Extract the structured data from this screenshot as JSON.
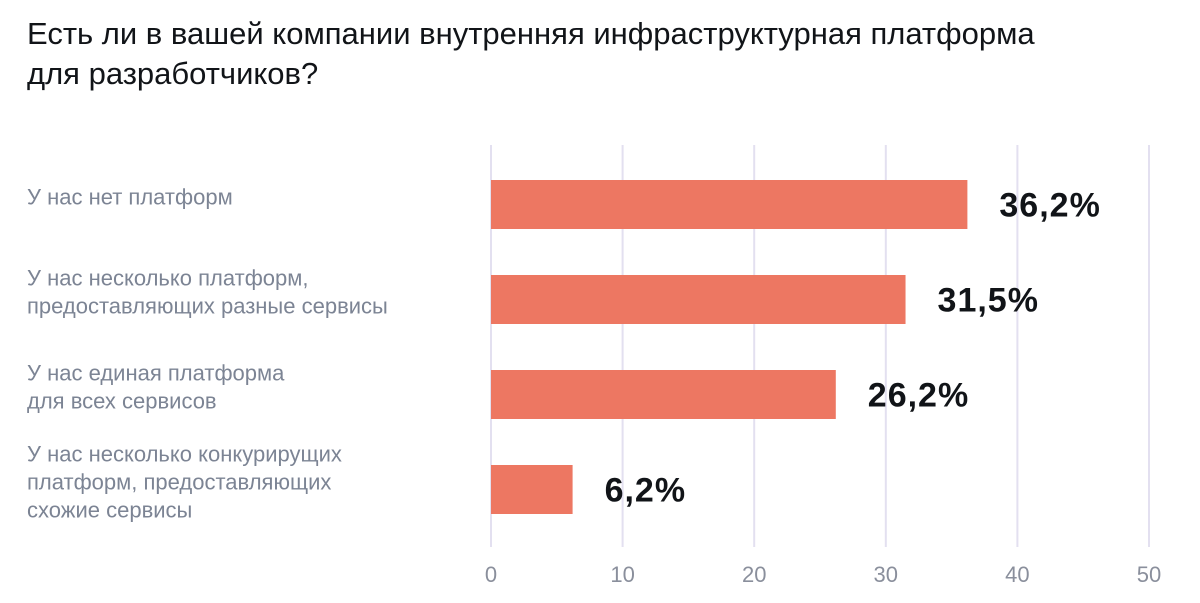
{
  "chart_data": {
    "type": "bar",
    "orientation": "horizontal",
    "title": "Есть ли в вашей компании внутренняя инфраструктурная платформа\nдля разработчиков?",
    "categories": [
      [
        "У нас нет платформ"
      ],
      [
        "У нас несколько платформ,",
        "предоставляющих разные сервисы"
      ],
      [
        "У нас единая платформа",
        "для всех сервисов"
      ],
      [
        "У нас несколько конкурирущих",
        "платформ, предоставляющих",
        "схожие сервисы"
      ]
    ],
    "values": [
      36.2,
      31.5,
      26.2,
      6.2
    ],
    "value_labels": [
      "36,2%",
      "31,5%",
      "26,2%",
      "6,2%"
    ],
    "xlim": [
      0,
      50
    ],
    "xticks": [
      "0",
      "10",
      "20",
      "30",
      "40",
      "50"
    ],
    "xlabel": "",
    "ylabel": "",
    "grid": true,
    "bar_color": "#ed7762",
    "grid_color": "#e3e0f0"
  }
}
